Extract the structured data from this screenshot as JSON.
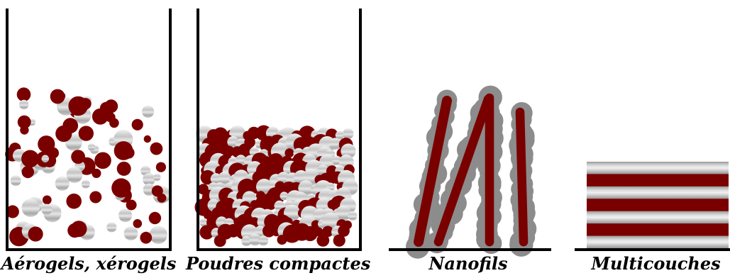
{
  "panels": [
    {
      "id": "aerogels",
      "caption": "Aérogels, xérogels"
    },
    {
      "id": "poudres",
      "caption": "Poudres compactes"
    },
    {
      "id": "nanofils",
      "caption": "Nanofils"
    },
    {
      "id": "multicouches",
      "caption": "Multicouches"
    }
  ],
  "colors": {
    "dark_particle": "#7a0000",
    "silver_light": "#eeeeee",
    "silver_mid": "#bdbdbd",
    "silver_dark": "#8a8a8a",
    "wire_shell": "#8c8c8c",
    "outline": "#000000"
  }
}
